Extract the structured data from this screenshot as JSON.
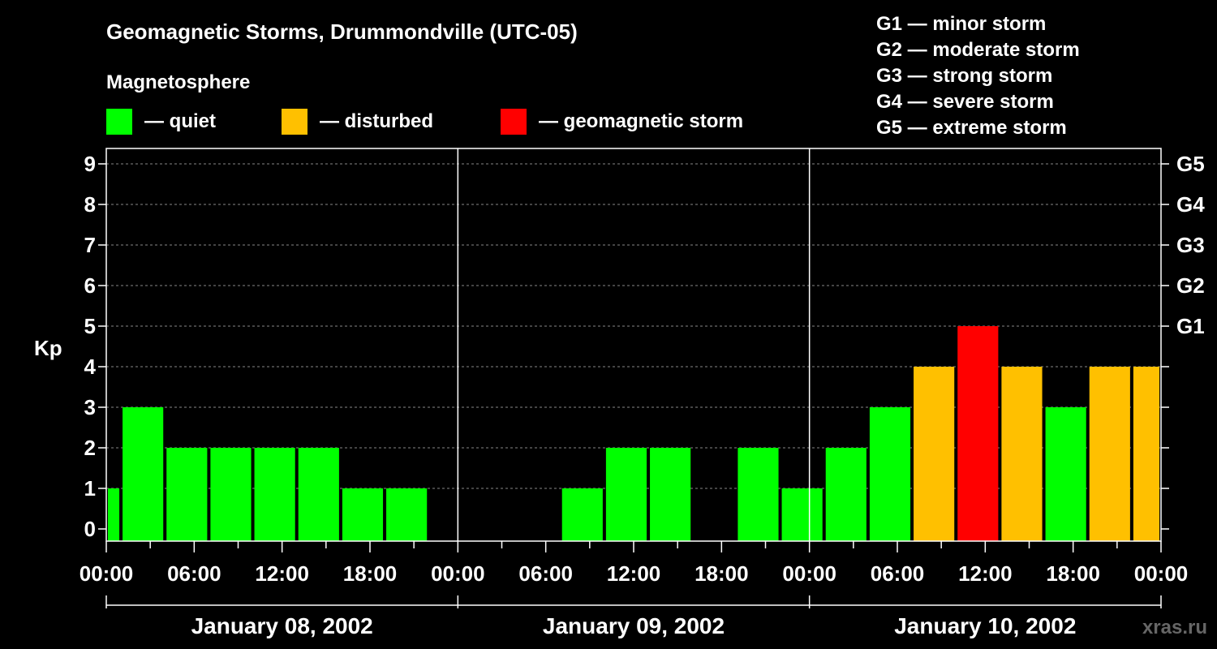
{
  "title": "Geomagnetic Storms, Drummondville (UTC-05)",
  "legend": {
    "heading": "Magnetosphere",
    "items": [
      {
        "label": "— quiet",
        "color": "#00ff00"
      },
      {
        "label": "— disturbed",
        "color": "#ffc000"
      },
      {
        "label": "— geomagnetic storm",
        "color": "#ff0000"
      }
    ]
  },
  "g_scale": [
    "G1 — minor storm",
    "G2 — moderate storm",
    "G3 — strong storm",
    "G4 — severe storm",
    "G5 — extreme storm"
  ],
  "watermark": "xras.ru",
  "chart_data": {
    "type": "bar",
    "ylabel": "Kp",
    "ylim": [
      0,
      9
    ],
    "yticks": [
      "0",
      "1",
      "2",
      "3",
      "4",
      "5",
      "6",
      "7",
      "8",
      "9"
    ],
    "right_ticks": [
      {
        "kp": 5,
        "label": "G1"
      },
      {
        "kp": 6,
        "label": "G2"
      },
      {
        "kp": 7,
        "label": "G3"
      },
      {
        "kp": 8,
        "label": "G4"
      },
      {
        "kp": 9,
        "label": "G5"
      }
    ],
    "xticks": [
      "00:00",
      "06:00",
      "12:00",
      "18:00",
      "00:00",
      "06:00",
      "12:00",
      "18:00",
      "00:00",
      "06:00",
      "12:00",
      "18:00",
      "00:00"
    ],
    "days": [
      "January 08, 2002",
      "January 09, 2002",
      "January 10, 2002"
    ],
    "bars": [
      {
        "start": "2002-01-08 00:00",
        "end": "2002-01-08 01:00",
        "kp": 1,
        "color": "#00ff00"
      },
      {
        "start": "2002-01-08 01:00",
        "end": "2002-01-08 04:00",
        "kp": 3,
        "color": "#00ff00"
      },
      {
        "start": "2002-01-08 04:00",
        "end": "2002-01-08 07:00",
        "kp": 2,
        "color": "#00ff00"
      },
      {
        "start": "2002-01-08 07:00",
        "end": "2002-01-08 10:00",
        "kp": 2,
        "color": "#00ff00"
      },
      {
        "start": "2002-01-08 10:00",
        "end": "2002-01-08 13:00",
        "kp": 2,
        "color": "#00ff00"
      },
      {
        "start": "2002-01-08 13:00",
        "end": "2002-01-08 16:00",
        "kp": 2,
        "color": "#00ff00"
      },
      {
        "start": "2002-01-08 16:00",
        "end": "2002-01-08 19:00",
        "kp": 1,
        "color": "#00ff00"
      },
      {
        "start": "2002-01-08 19:00",
        "end": "2002-01-08 22:00",
        "kp": 1,
        "color": "#00ff00"
      },
      {
        "start": "2002-01-08 22:00",
        "end": "2002-01-09 01:00",
        "kp": 0,
        "color": "#00ff00"
      },
      {
        "start": "2002-01-09 01:00",
        "end": "2002-01-09 04:00",
        "kp": 0,
        "color": "#00ff00"
      },
      {
        "start": "2002-01-09 04:00",
        "end": "2002-01-09 07:00",
        "kp": 0,
        "color": "#00ff00"
      },
      {
        "start": "2002-01-09 07:00",
        "end": "2002-01-09 10:00",
        "kp": 1,
        "color": "#00ff00"
      },
      {
        "start": "2002-01-09 10:00",
        "end": "2002-01-09 13:00",
        "kp": 2,
        "color": "#00ff00"
      },
      {
        "start": "2002-01-09 13:00",
        "end": "2002-01-09 16:00",
        "kp": 2,
        "color": "#00ff00"
      },
      {
        "start": "2002-01-09 16:00",
        "end": "2002-01-09 19:00",
        "kp": 0,
        "color": "#00ff00"
      },
      {
        "start": "2002-01-09 19:00",
        "end": "2002-01-09 22:00",
        "kp": 2,
        "color": "#00ff00"
      },
      {
        "start": "2002-01-09 22:00",
        "end": "2002-01-10 01:00",
        "kp": 1,
        "color": "#00ff00"
      },
      {
        "start": "2002-01-10 01:00",
        "end": "2002-01-10 04:00",
        "kp": 2,
        "color": "#00ff00"
      },
      {
        "start": "2002-01-10 04:00",
        "end": "2002-01-10 07:00",
        "kp": 3,
        "color": "#00ff00"
      },
      {
        "start": "2002-01-10 07:00",
        "end": "2002-01-10 10:00",
        "kp": 4,
        "color": "#ffc000"
      },
      {
        "start": "2002-01-10 10:00",
        "end": "2002-01-10 13:00",
        "kp": 5,
        "color": "#ff0000"
      },
      {
        "start": "2002-01-10 13:00",
        "end": "2002-01-10 16:00",
        "kp": 4,
        "color": "#ffc000"
      },
      {
        "start": "2002-01-10 16:00",
        "end": "2002-01-10 19:00",
        "kp": 3,
        "color": "#00ff00"
      },
      {
        "start": "2002-01-10 19:00",
        "end": "2002-01-10 22:00",
        "kp": 4,
        "color": "#ffc000"
      },
      {
        "start": "2002-01-10 22:00",
        "end": "2002-01-11 00:00",
        "kp": 4,
        "color": "#ffc000"
      }
    ]
  }
}
